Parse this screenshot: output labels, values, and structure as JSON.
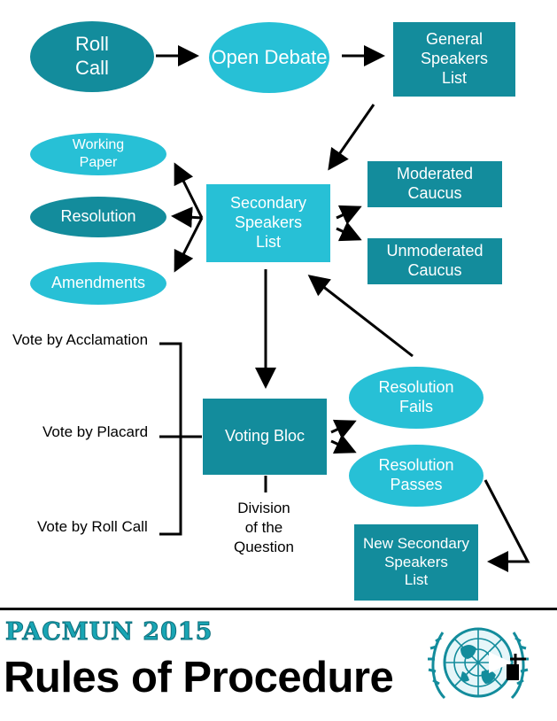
{
  "flow": {
    "roll_call": "Roll\nCall",
    "open_debate": "Open Debate",
    "general_speakers_list": "General Speakers\nList",
    "working_paper": "Working\nPaper",
    "resolution": "Resolution",
    "amendments": "Amendments",
    "secondary_speakers_list": "Secondary\nSpeakers\nList",
    "moderated_caucus": "Moderated\nCaucus",
    "unmoderated_caucus": "Unmoderated\nCaucus",
    "voting_bloc": "Voting Bloc",
    "resolution_fails": "Resolution\nFails",
    "resolution_passes": "Resolution\nPasses",
    "new_secondary_speakers_list": "New Secondary\nSpeakers\nList",
    "division_of_question": "Division\nof the\nQuestion"
  },
  "vote_methods": {
    "acclamation": "Vote by Acclamation",
    "placard": "Vote by Placard",
    "roll_call": "Vote by Roll Call"
  },
  "footer": {
    "event": "PACMUN 2015",
    "title": "Rules of Procedure"
  },
  "colors": {
    "dark_teal": "#138c9c",
    "light_teal": "#27c0d6",
    "text_on_shapes": "#ffffff"
  }
}
